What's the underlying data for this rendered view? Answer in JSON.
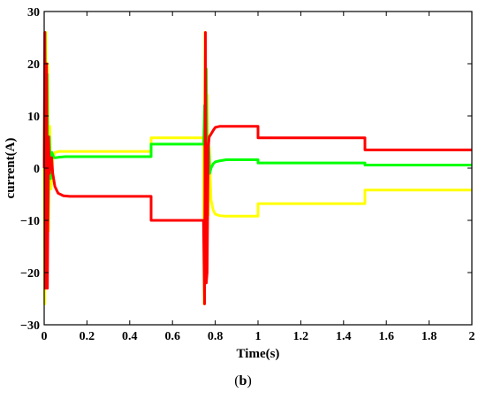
{
  "caption": {
    "prefix": "(",
    "letter": "b",
    "suffix": ")"
  },
  "chart_data": {
    "type": "line",
    "title": "",
    "xlabel": "Time(s)",
    "ylabel": "current(A)",
    "xlim": [
      0,
      2
    ],
    "ylim": [
      -30,
      30
    ],
    "xticks": [
      0,
      0.2,
      0.4,
      0.6,
      0.8,
      1,
      1.2,
      1.4,
      1.6,
      1.8,
      2
    ],
    "xtick_labels": [
      "0",
      "0.2",
      "0.4",
      "0.6",
      "0.8",
      "1",
      "1.2",
      "1.4",
      "1.6",
      "1.8",
      "2"
    ],
    "yticks": [
      -30,
      -20,
      -10,
      0,
      10,
      20,
      30
    ],
    "ytick_labels": [
      "−30",
      "−20",
      "−10",
      "0",
      "10",
      "20",
      "30"
    ],
    "grid": false,
    "legend": "none",
    "series": [
      {
        "color": "#ffff00",
        "x": [
          0,
          0.003,
          0.008,
          0.012,
          0.016,
          0.02,
          0.026,
          0.032,
          0.04,
          0.05,
          0.07,
          0.1,
          0.5,
          0.5,
          0.745,
          0.748,
          0.752,
          0.757,
          0.762,
          0.767,
          0.772,
          0.78,
          0.79,
          0.8,
          0.82,
          0.85,
          0.9,
          1.0,
          1.0,
          1.5,
          1.5,
          2.0
        ],
        "y": [
          0,
          -26,
          26,
          -22,
          20,
          -12,
          8,
          -4,
          2,
          3.0,
          3.2,
          3.2,
          3.2,
          5.8,
          5.8,
          -26,
          26,
          -20,
          14,
          -9,
          4,
          -6,
          -8,
          -8.8,
          -9.1,
          -9.2,
          -9.2,
          -9.2,
          -6.8,
          -6.8,
          -4.2,
          -4.2
        ]
      },
      {
        "color": "#00ff00",
        "x": [
          0,
          0.004,
          0.009,
          0.014,
          0.018,
          0.024,
          0.03,
          0.036,
          0.045,
          0.055,
          0.07,
          0.1,
          0.5,
          0.5,
          0.746,
          0.75,
          0.754,
          0.758,
          0.763,
          0.768,
          0.774,
          0.78,
          0.79,
          0.8,
          0.82,
          0.85,
          1.0,
          1.0,
          1.5,
          1.5,
          2.0
        ],
        "y": [
          0,
          26,
          -22,
          18,
          -10,
          6,
          -2,
          3,
          2.0,
          2.0,
          2.1,
          2.2,
          2.2,
          4.6,
          4.6,
          12,
          -20,
          19,
          -8,
          6,
          -1,
          0,
          0.8,
          1.2,
          1.4,
          1.6,
          1.6,
          1.0,
          1.0,
          0.6,
          0.6
        ]
      },
      {
        "color": "#ff0000",
        "x": [
          0,
          0.003,
          0.007,
          0.011,
          0.015,
          0.02,
          0.025,
          0.03,
          0.035,
          0.04,
          0.05,
          0.065,
          0.09,
          0.12,
          0.5,
          0.5,
          0.745,
          0.75,
          0.754,
          0.758,
          0.762,
          0.767,
          0.772,
          0.78,
          0.79,
          0.8,
          0.82,
          0.85,
          1.0,
          1.0,
          1.5,
          1.5,
          2.0
        ],
        "y": [
          0,
          26,
          -23,
          20,
          -23,
          6,
          -1,
          2,
          2,
          -1,
          -3.5,
          -4.8,
          -5.3,
          -5.4,
          -5.4,
          -10,
          -10,
          -26,
          26,
          -22,
          -20,
          4,
          6,
          6.5,
          7.2,
          7.8,
          8.0,
          8.0,
          8.0,
          5.8,
          5.8,
          3.5,
          3.5
        ]
      }
    ]
  }
}
